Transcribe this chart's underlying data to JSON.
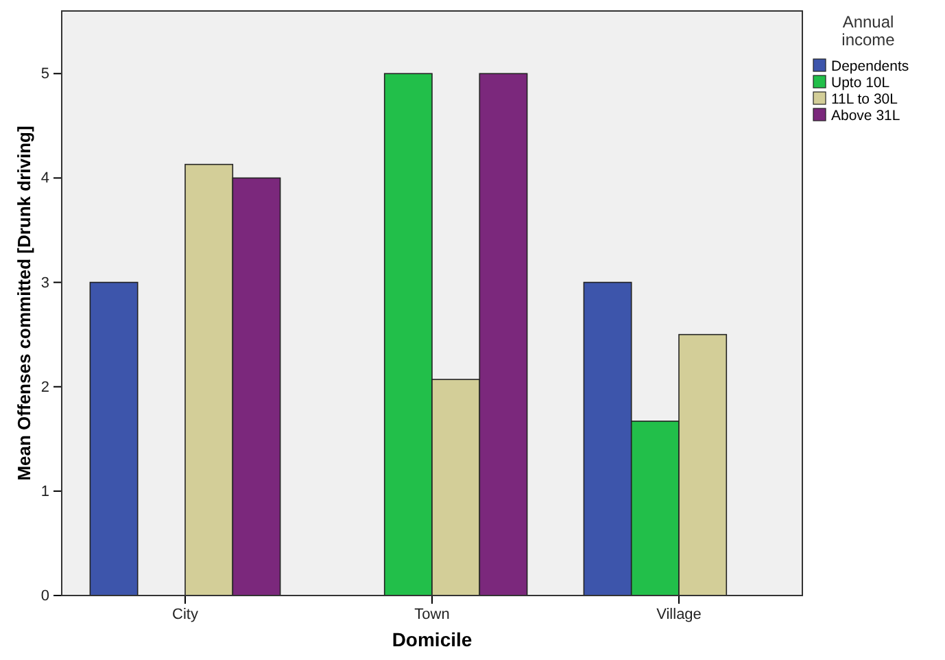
{
  "chart_data": {
    "type": "bar",
    "xlabel": "Domicile",
    "ylabel": "Mean Offenses committed [Drunk driving]",
    "legend_title": "Annual income",
    "legend": "top right",
    "categories": [
      "City",
      "Town",
      "Village"
    ],
    "ylim": [
      0,
      5.6
    ],
    "yticks": [
      0,
      1,
      2,
      3,
      4,
      5
    ],
    "grid": false,
    "series": [
      {
        "name": "Dependents",
        "color": "#3d55ab",
        "values": [
          3,
          null,
          3
        ]
      },
      {
        "name": "Upto 10L",
        "color": "#22bf4a",
        "values": [
          null,
          5,
          1.67
        ]
      },
      {
        "name": "11L to 30L",
        "color": "#d3ce98",
        "values": [
          4.13,
          2.07,
          2.5
        ]
      },
      {
        "name": "Above 31L",
        "color": "#7b287c",
        "values": [
          4,
          5,
          null
        ]
      }
    ]
  }
}
